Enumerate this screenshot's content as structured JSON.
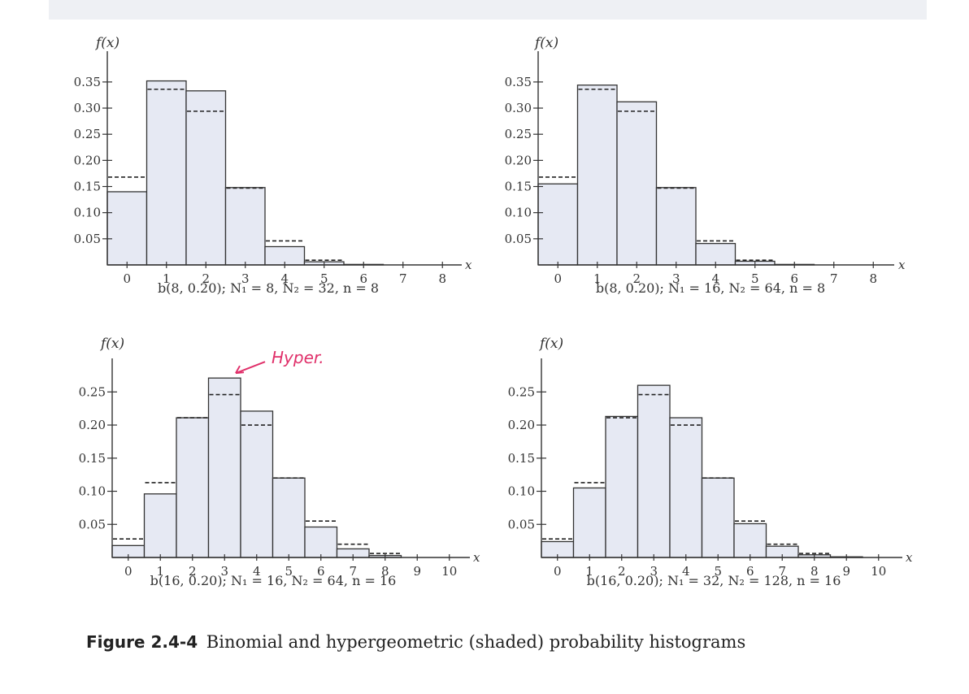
{
  "figure": {
    "number": "Figure 2.4-4",
    "caption": "Binomial and hypergeometric (shaded) probability histograms"
  },
  "chart_data": [
    {
      "type": "bar",
      "ylabel": "f(x)",
      "xlabel": "x",
      "subtitle": "b(8, 0.20); N₁ = 8, N₂ = 32, n = 8",
      "x": [
        0,
        1,
        2,
        3,
        4,
        5,
        6,
        7,
        8
      ],
      "xticks": [
        "0",
        "1",
        "2",
        "3",
        "4",
        "5",
        "6",
        "7",
        "8"
      ],
      "ylim": [
        0,
        0.37
      ],
      "yticks": [
        0.05,
        0.1,
        0.15,
        0.2,
        0.25,
        0.3,
        0.35
      ],
      "ytick_labels": [
        "0.05",
        "0.10",
        "0.15",
        "0.20",
        "0.25",
        "0.30",
        "0.35"
      ],
      "series": [
        {
          "name": "hypergeometric (shaded)",
          "style": "shaded-bars",
          "values": [
            0.14,
            0.352,
            0.333,
            0.148,
            0.035,
            0.006,
            0.001,
            0.0,
            0.0
          ]
        },
        {
          "name": "binomial",
          "style": "dashed",
          "values": [
            0.168,
            0.336,
            0.294,
            0.147,
            0.046,
            0.009,
            0.001,
            0.0,
            0.0
          ]
        }
      ]
    },
    {
      "type": "bar",
      "ylabel": "f(x)",
      "xlabel": "x",
      "subtitle": "b(8, 0.20); N₁ = 16, N₂ = 64, n = 8",
      "x": [
        0,
        1,
        2,
        3,
        4,
        5,
        6,
        7,
        8
      ],
      "xticks": [
        "0",
        "1",
        "2",
        "3",
        "4",
        "5",
        "6",
        "7",
        "8"
      ],
      "ylim": [
        0,
        0.37
      ],
      "yticks": [
        0.05,
        0.1,
        0.15,
        0.2,
        0.25,
        0.3,
        0.35
      ],
      "ytick_labels": [
        "0.05",
        "0.10",
        "0.15",
        "0.20",
        "0.25",
        "0.30",
        "0.35"
      ],
      "series": [
        {
          "name": "hypergeometric (shaded)",
          "style": "shaded-bars",
          "values": [
            0.155,
            0.344,
            0.312,
            0.148,
            0.041,
            0.007,
            0.001,
            0.0,
            0.0
          ]
        },
        {
          "name": "binomial",
          "style": "dashed",
          "values": [
            0.168,
            0.336,
            0.294,
            0.147,
            0.046,
            0.009,
            0.001,
            0.0,
            0.0
          ]
        }
      ]
    },
    {
      "type": "bar",
      "ylabel": "f(x)",
      "xlabel": "x",
      "subtitle": "b(16, 0.20); N₁ = 16, N₂ = 64, n = 16",
      "annotation": "Hyper.",
      "annotation_target_x": 3,
      "x": [
        0,
        1,
        2,
        3,
        4,
        5,
        6,
        7,
        8,
        9,
        10
      ],
      "xticks": [
        "0",
        "1",
        "2",
        "3",
        "4",
        "5",
        "6",
        "7",
        "8",
        "9",
        "10"
      ],
      "ylim": [
        0,
        0.27
      ],
      "yticks": [
        0.05,
        0.1,
        0.15,
        0.2,
        0.25
      ],
      "ytick_labels": [
        "0.05",
        "0.10",
        "0.15",
        "0.20",
        "0.25"
      ],
      "series": [
        {
          "name": "hypergeometric (shaded)",
          "style": "shaded-bars",
          "values": [
            0.018,
            0.096,
            0.211,
            0.271,
            0.221,
            0.12,
            0.046,
            0.013,
            0.003,
            0.0,
            0.0
          ]
        },
        {
          "name": "binomial",
          "style": "dashed",
          "values": [
            0.028,
            0.113,
            0.211,
            0.246,
            0.2,
            0.12,
            0.055,
            0.02,
            0.006,
            0.001,
            0.0
          ]
        }
      ]
    },
    {
      "type": "bar",
      "ylabel": "f(x)",
      "xlabel": "x",
      "subtitle": "b(16, 0.20); N₁ = 32, N₂ = 128, n = 16",
      "x": [
        0,
        1,
        2,
        3,
        4,
        5,
        6,
        7,
        8,
        9,
        10
      ],
      "xticks": [
        "0",
        "1",
        "2",
        "3",
        "4",
        "5",
        "6",
        "7",
        "8",
        "9",
        "10"
      ],
      "ylim": [
        0,
        0.27
      ],
      "yticks": [
        0.05,
        0.1,
        0.15,
        0.2,
        0.25
      ],
      "ytick_labels": [
        "0.05",
        "0.10",
        "0.15",
        "0.20",
        "0.25"
      ],
      "series": [
        {
          "name": "hypergeometric (shaded)",
          "style": "shaded-bars",
          "values": [
            0.024,
            0.105,
            0.213,
            0.26,
            0.211,
            0.12,
            0.051,
            0.017,
            0.004,
            0.001,
            0.0
          ]
        },
        {
          "name": "binomial",
          "style": "dashed",
          "values": [
            0.028,
            0.113,
            0.211,
            0.246,
            0.2,
            0.12,
            0.055,
            0.02,
            0.006,
            0.001,
            0.0
          ]
        }
      ]
    }
  ]
}
